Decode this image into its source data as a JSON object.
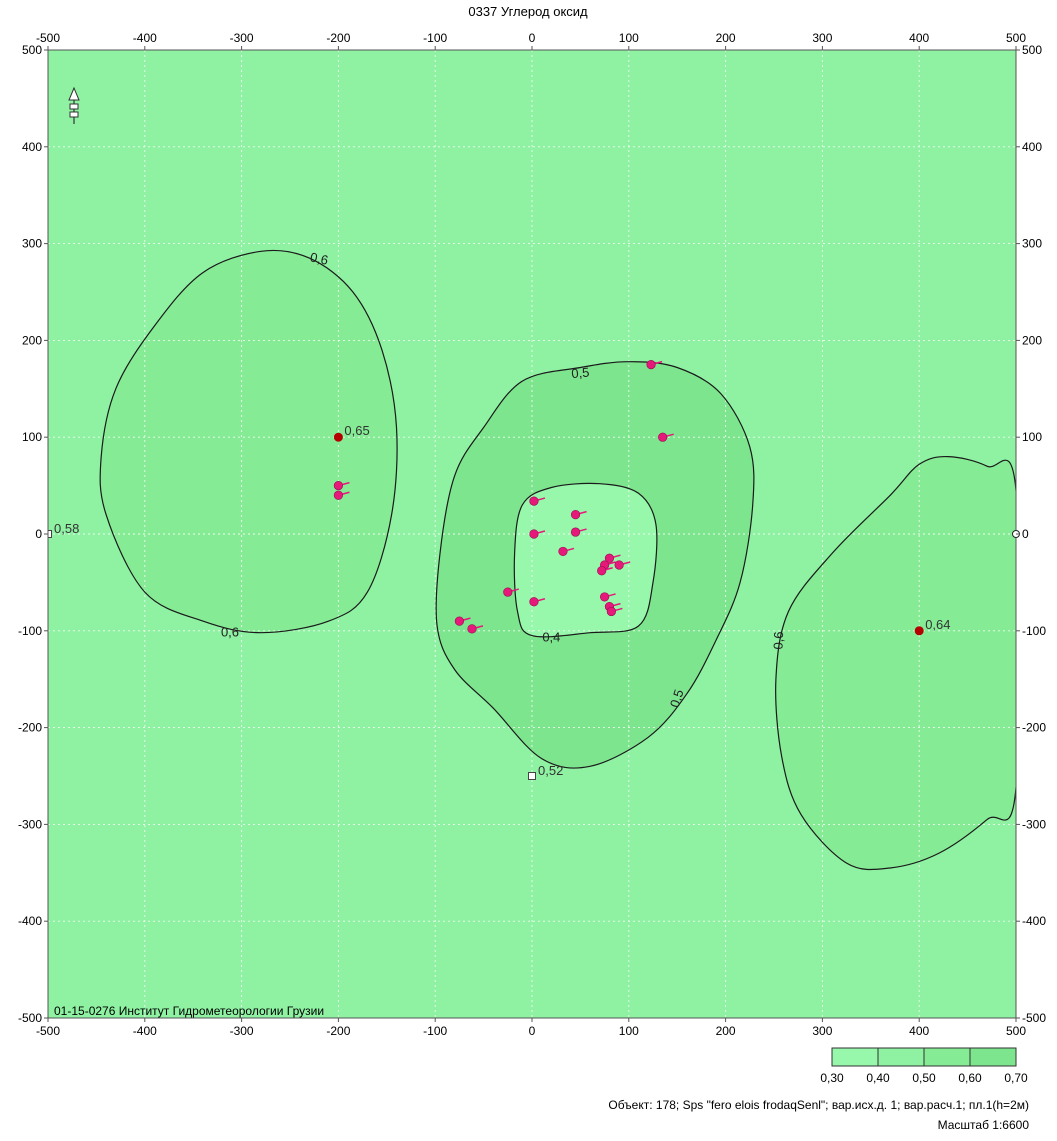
{
  "chart_data": {
    "type": "contour",
    "title": "0337 Углерод оксид",
    "xlim": [
      -500,
      500
    ],
    "ylim": [
      -500,
      500
    ],
    "x_ticks": [
      -500,
      -400,
      -300,
      -200,
      -100,
      0,
      100,
      200,
      300,
      400,
      500
    ],
    "y_ticks": [
      -500,
      -400,
      -300,
      -200,
      -100,
      0,
      100,
      200,
      300,
      400,
      500
    ],
    "grid": true,
    "background_color": "#8ef2a2",
    "fill_color_05": "#7ee58f",
    "fill_color_06": "#86eb95",
    "fill_color_04": "#97f7ab",
    "contours": [
      {
        "level": "0,6",
        "label_text": "0,6",
        "points": [
          [
            -430,
            150
          ],
          [
            -390,
            215
          ],
          [
            -340,
            270
          ],
          [
            -280,
            292
          ],
          [
            -230,
            285
          ],
          [
            -185,
            250
          ],
          [
            -155,
            190
          ],
          [
            -140,
            110
          ],
          [
            -145,
            20
          ],
          [
            -170,
            -60
          ],
          [
            -210,
            -90
          ],
          [
            -280,
            -102
          ],
          [
            -340,
            -90
          ],
          [
            -400,
            -60
          ],
          [
            -440,
            20
          ],
          [
            -445,
            80
          ]
        ]
      },
      {
        "level": "0,5",
        "label_text": "0,5",
        "points": [
          [
            -50,
            110
          ],
          [
            -10,
            158
          ],
          [
            50,
            172
          ],
          [
            100,
            178
          ],
          [
            150,
            172
          ],
          [
            195,
            145
          ],
          [
            225,
            90
          ],
          [
            228,
            30
          ],
          [
            215,
            -50
          ],
          [
            190,
            -110
          ],
          [
            160,
            -165
          ],
          [
            120,
            -210
          ],
          [
            60,
            -240
          ],
          [
            10,
            -232
          ],
          [
            -40,
            -180
          ],
          [
            -80,
            -140
          ],
          [
            -98,
            -95
          ],
          [
            -95,
            -20
          ],
          [
            -80,
            60
          ]
        ]
      },
      {
        "level": "0,4",
        "label_text": "0,4",
        "points": [
          [
            -10,
            30
          ],
          [
            20,
            48
          ],
          [
            70,
            52
          ],
          [
            110,
            42
          ],
          [
            128,
            10
          ],
          [
            125,
            -50
          ],
          [
            110,
            -95
          ],
          [
            60,
            -102
          ],
          [
            0,
            -105
          ],
          [
            -15,
            -80
          ],
          [
            -18,
            -20
          ]
        ]
      },
      {
        "level": "0,6",
        "label_text": "0,6",
        "points": [
          [
            500,
            45
          ],
          [
            470,
            70
          ],
          [
            430,
            80
          ],
          [
            400,
            72
          ],
          [
            370,
            40
          ],
          [
            310,
            -20
          ],
          [
            265,
            -80
          ],
          [
            252,
            -150
          ],
          [
            258,
            -230
          ],
          [
            278,
            -290
          ],
          [
            325,
            -340
          ],
          [
            370,
            -345
          ],
          [
            420,
            -330
          ],
          [
            470,
            -295
          ],
          [
            500,
            -262
          ]
        ]
      }
    ],
    "contour_labels": [
      {
        "text": "0,6",
        "x": -220,
        "y": 284,
        "angle": 12
      },
      {
        "text": "0,6",
        "x": -312,
        "y": -102,
        "angle": 0
      },
      {
        "text": "0,5",
        "x": 50,
        "y": 166,
        "angle": -5
      },
      {
        "text": "0,5",
        "x": 150,
        "y": -170,
        "angle": -72
      },
      {
        "text": "0,4",
        "x": 20,
        "y": -107,
        "angle": 0
      },
      {
        "text": "0,6",
        "x": 255,
        "y": -110,
        "angle": -88
      }
    ],
    "max_points": [
      {
        "label": "0,65",
        "x": -200,
        "y": 100
      },
      {
        "label": "0,64",
        "x": 400,
        "y": -100
      }
    ],
    "min_points": [
      {
        "label": "0,58",
        "x": -500,
        "y": 0
      },
      {
        "label": "0,52",
        "x": 0,
        "y": -250
      }
    ],
    "sources": [
      {
        "x": 123,
        "y": 175
      },
      {
        "x": 135,
        "y": 100
      },
      {
        "x": -200,
        "y": 50
      },
      {
        "x": -200,
        "y": 40
      },
      {
        "x": 2,
        "y": 34
      },
      {
        "x": 45,
        "y": 20
      },
      {
        "x": 45,
        "y": 2
      },
      {
        "x": 2,
        "y": 0
      },
      {
        "x": 32,
        "y": -18
      },
      {
        "x": 80,
        "y": -25
      },
      {
        "x": 75,
        "y": -32
      },
      {
        "x": 90,
        "y": -32
      },
      {
        "x": 72,
        "y": -38
      },
      {
        "x": -25,
        "y": -60
      },
      {
        "x": 2,
        "y": -70
      },
      {
        "x": 75,
        "y": -65
      },
      {
        "x": 80,
        "y": -75
      },
      {
        "x": 82,
        "y": -80
      },
      {
        "x": -75,
        "y": -90
      },
      {
        "x": -62,
        "y": -98
      }
    ],
    "edge_marker": {
      "x": 500,
      "y": 0
    },
    "legend": {
      "labels": [
        "0,30",
        "0,40",
        "0,50",
        "0,60",
        "0,70"
      ],
      "colors": [
        "#97f7ab",
        "#8ef2a2",
        "#86eb95",
        "#7ee58f"
      ]
    }
  },
  "inner_caption": "01-15-0276 Институт Гидрометеорологии Грузии",
  "footer": {
    "object_text": "Объект: 178; Sps \"fero elois frodaqSenl\"; вар.исх.д. 1; вар.расч.1; пл.1(h=2м)",
    "scale_text": "Масштаб 1:6600"
  },
  "colors": {
    "contour_line": "#1a1a1a",
    "grid_line": "#ffffff",
    "source_marker": "#e6197a",
    "max_marker": "#b40000"
  },
  "north_arrow_icon": "north-arrow-icon"
}
